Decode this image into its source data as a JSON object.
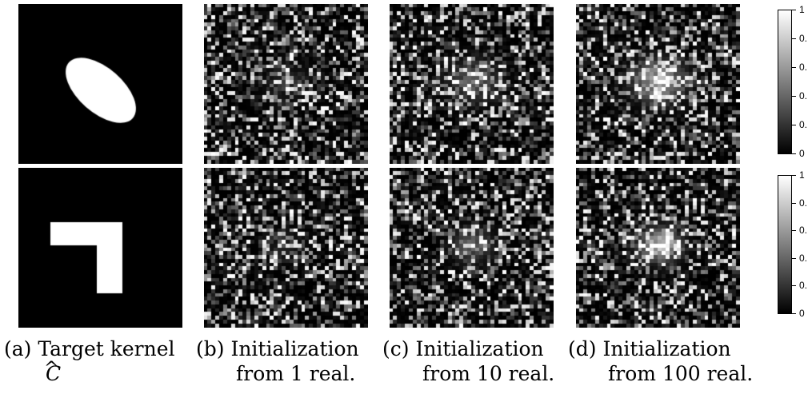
{
  "figure": {
    "panels": [
      {
        "row": 0,
        "col": 0,
        "kind": "target-ellipse"
      },
      {
        "row": 0,
        "col": 1,
        "kind": "noise",
        "realizations": 1,
        "blob": 0.15
      },
      {
        "row": 0,
        "col": 2,
        "kind": "noise",
        "realizations": 10,
        "blob": 0.45
      },
      {
        "row": 0,
        "col": 3,
        "kind": "noise",
        "realizations": 100,
        "blob": 0.85
      },
      {
        "row": 1,
        "col": 0,
        "kind": "target-corner"
      },
      {
        "row": 1,
        "col": 1,
        "kind": "noise",
        "realizations": 1,
        "blob": 0.15
      },
      {
        "row": 1,
        "col": 2,
        "kind": "noise",
        "realizations": 10,
        "blob": 0.45
      },
      {
        "row": 1,
        "col": 3,
        "kind": "noise",
        "realizations": 100,
        "blob": 0.9
      }
    ],
    "colorbars": [
      {
        "ticks": [
          "1",
          "0.",
          "0.",
          "0.",
          "0.",
          "0"
        ]
      },
      {
        "ticks": [
          "1",
          "0.",
          "0.",
          "0.",
          "0.",
          "0"
        ]
      }
    ],
    "captions": {
      "a": {
        "line1": "(a) Target  kernel",
        "line2": "C",
        "hat": "^"
      },
      "b": {
        "line1": "(b) Initialization",
        "line2": "from 1 real."
      },
      "c": {
        "line1": "(c) Initialization",
        "line2": "from 10 real."
      },
      "d": {
        "line1": "(d) Initialization",
        "line2": "from 100 real."
      }
    },
    "colors": {
      "background": "#000000",
      "foreground": "#ffffff"
    }
  }
}
